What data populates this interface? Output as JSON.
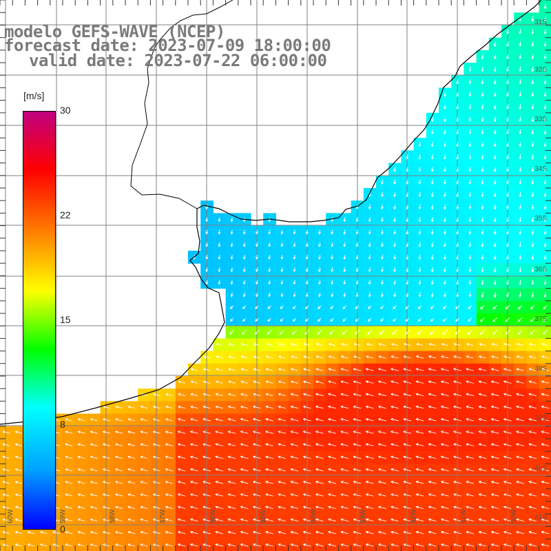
{
  "title": {
    "line1": "modelo GEFS-WAVE (NCEP)",
    "line2": "forecast date: 2023-07-09 18:00:00",
    "line3": "valid date: 2023-07-22 06:00:00"
  },
  "colorbar": {
    "unit": "[m/s]",
    "ticks": [
      "30",
      "22",
      "15",
      "8",
      "0"
    ],
    "tick_values": [
      30,
      22,
      15,
      8,
      0
    ],
    "colors": [
      "#0000ff",
      "#00a0ff",
      "#00ffff",
      "#00ff00",
      "#ffff00",
      "#ff8000",
      "#ff0000",
      "#c00080"
    ]
  },
  "latitude_labels": [
    "31S",
    "32S",
    "33S",
    "34S",
    "35S",
    "36S",
    "37S",
    "38S",
    "39S",
    "40S",
    "41S"
  ],
  "longitude_labels": [
    "60W",
    "59W",
    "58W",
    "57W",
    "56W",
    "55W",
    "54W",
    "53W",
    "52W",
    "51W",
    "50W"
  ],
  "map": {
    "variable": "wind speed",
    "arrow_color": "#ffffff",
    "coastline_color": "#000000",
    "grid_color": "#808080"
  }
}
